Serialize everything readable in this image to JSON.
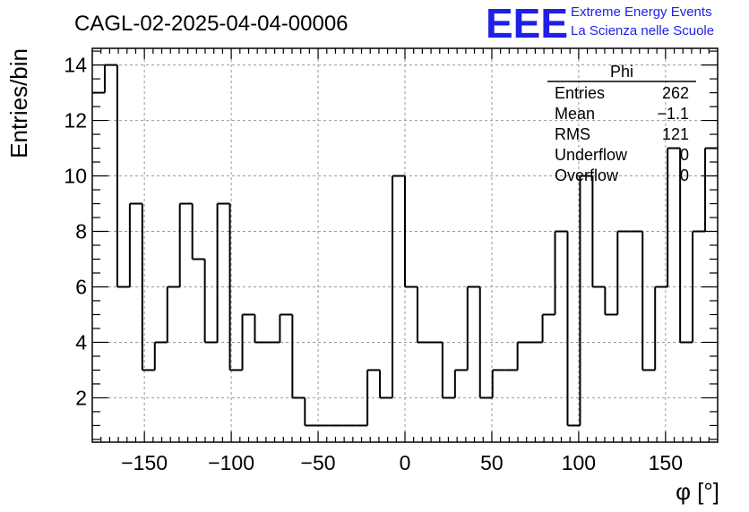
{
  "chart_data": {
    "type": "bar",
    "title": "CAGL-02-2025-04-04-00006",
    "xlabel": "φ [°]",
    "ylabel": "Entries/bin",
    "xlim": [
      -180,
      180
    ],
    "ylim": [
      0.4,
      14.6
    ],
    "x_ticks": [
      -150,
      -100,
      -50,
      0,
      50,
      100,
      150
    ],
    "x_tick_labels": [
      "−150",
      "−100",
      "−50",
      "0",
      "50",
      "100",
      "150"
    ],
    "y_ticks": [
      2,
      4,
      6,
      8,
      10,
      12,
      14
    ],
    "y_tick_labels": [
      "2",
      "4",
      "6",
      "8",
      "10",
      "12",
      "14"
    ],
    "grid": true,
    "bin_width": 7.2,
    "bin_edges_start": -180,
    "values": [
      13,
      14,
      6,
      9,
      3,
      4,
      6,
      9,
      7,
      4,
      9,
      3,
      5,
      4,
      4,
      5,
      2,
      1,
      1,
      1,
      1,
      1,
      3,
      2,
      10,
      6,
      4,
      4,
      2,
      3,
      6,
      2,
      3,
      3,
      4,
      4,
      5,
      8,
      1,
      10,
      6,
      5,
      8,
      8,
      3,
      6,
      11,
      4,
      8,
      11
    ],
    "stats_box": {
      "title": "Phi",
      "rows": [
        {
          "label": "Entries",
          "value": "262"
        },
        {
          "label": "Mean",
          "value": "−1.1"
        },
        {
          "label": "RMS",
          "value": "121"
        },
        {
          "label": "Underflow",
          "value": "0"
        },
        {
          "label": "Overflow",
          "value": "0"
        }
      ]
    }
  },
  "logo": {
    "mark": "EEE",
    "line1": "Extreme Energy Events",
    "line2": "La Scienza nelle Scuole",
    "color": "#1f1fe6"
  }
}
